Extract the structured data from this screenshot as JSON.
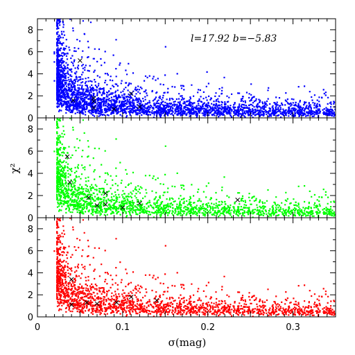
{
  "chart_data": {
    "type": "scatter",
    "layout": "three vertically stacked panels sharing the x axis",
    "xlabel": "σ(mag)",
    "ylabel": "χ²",
    "annotation": "l=17.92 b=−5.83",
    "xlim": [
      0,
      0.35
    ],
    "ylim": [
      0,
      9
    ],
    "x_ticks": [
      "0",
      "0.1",
      "0.2",
      "0.3"
    ],
    "y_ticks": [
      "0",
      "2",
      "4",
      "6",
      "8"
    ],
    "grid": false,
    "panels": [
      {
        "color": "#0000ff",
        "marker_points": [
          {
            "x": 0.042,
            "y": 1.6
          },
          {
            "x": 0.05,
            "y": 5.2
          },
          {
            "x": 0.066,
            "y": 1.8
          },
          {
            "x": 0.066,
            "y": 1.5
          },
          {
            "x": 0.066,
            "y": 0.9
          },
          {
            "x": 0.09,
            "y": 0.8
          },
          {
            "x": 0.11,
            "y": 2.2
          },
          {
            "x": 0.12,
            "y": 1.0
          }
        ]
      },
      {
        "color": "#00ff00",
        "marker_points": [
          {
            "x": 0.035,
            "y": 5.5
          },
          {
            "x": 0.038,
            "y": 3.2
          },
          {
            "x": 0.06,
            "y": 1.8
          },
          {
            "x": 0.07,
            "y": 1.1
          },
          {
            "x": 0.08,
            "y": 2.2
          },
          {
            "x": 0.08,
            "y": 1.2
          },
          {
            "x": 0.1,
            "y": 0.9
          },
          {
            "x": 0.12,
            "y": 1.3
          },
          {
            "x": 0.235,
            "y": 1.6
          }
        ]
      },
      {
        "color": "#ff0000",
        "marker_points": [
          {
            "x": 0.04,
            "y": 3.4
          },
          {
            "x": 0.04,
            "y": 1.1
          },
          {
            "x": 0.058,
            "y": 1.3
          },
          {
            "x": 0.07,
            "y": 1.2
          },
          {
            "x": 0.093,
            "y": 1.3
          },
          {
            "x": 0.11,
            "y": 1.8
          },
          {
            "x": 0.14,
            "y": 1.5
          }
        ]
      }
    ]
  }
}
